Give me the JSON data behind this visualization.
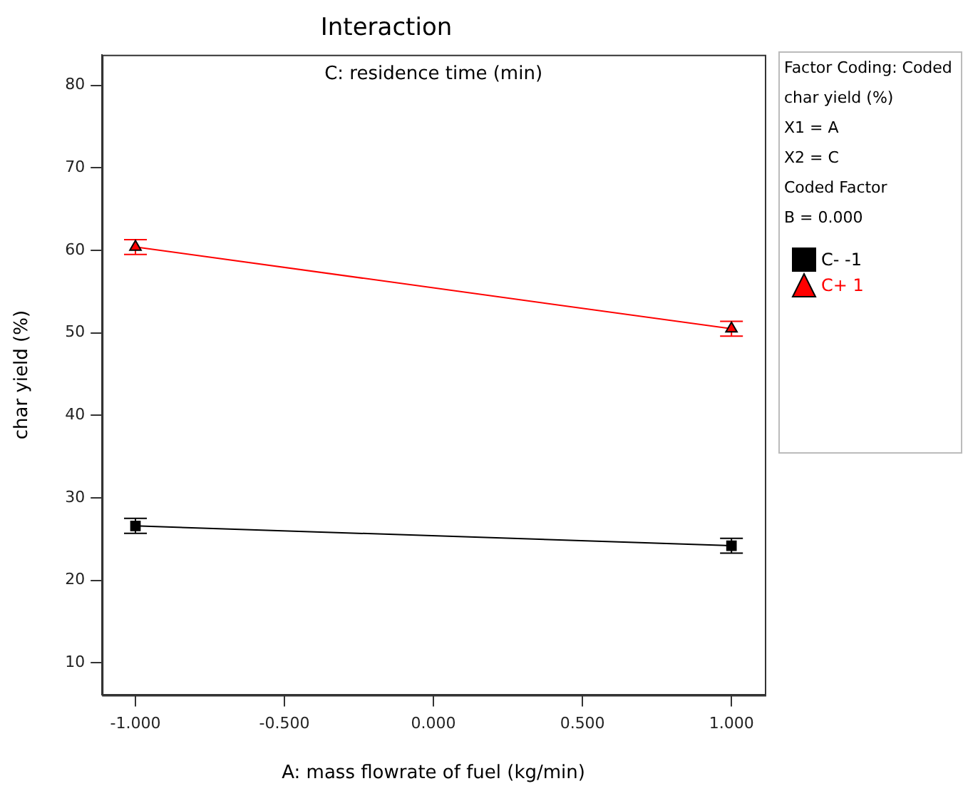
{
  "chart_data": {
    "type": "line",
    "title": "Interaction",
    "subtitle": "C: residence time (min)",
    "xlabel": "A: mass flowrate of fuel (kg/min)",
    "ylabel": "char yield (%)",
    "x": [
      -1,
      1
    ],
    "series": [
      {
        "name": "C- -1",
        "color": "#000000",
        "marker": "square",
        "values": [
          26.6,
          24.2
        ],
        "errors": [
          0.9,
          0.9
        ]
      },
      {
        "name": "C+ 1",
        "color": "#ff0000",
        "marker": "triangle",
        "values": [
          60.4,
          50.5
        ],
        "errors": [
          0.9,
          0.9
        ]
      }
    ],
    "xlim": [
      -1.112,
      1.112
    ],
    "xticks": [
      {
        "value": -1,
        "label": "-1.000"
      },
      {
        "value": -0.5,
        "label": "-0.500"
      },
      {
        "value": 0,
        "label": "0.000"
      },
      {
        "value": 0.5,
        "label": "0.500"
      },
      {
        "value": 1,
        "label": "1.000"
      }
    ],
    "ylim": [
      6.1,
      83.7
    ],
    "yticks": [
      10,
      20,
      30,
      40,
      50,
      60,
      70,
      80
    ],
    "grid": false,
    "legend": "right",
    "line_style": "solid",
    "annotations": [
      "Factor Coding: Coded",
      "char yield (%)",
      "X1 = A",
      "X2 = C",
      "Coded Factor",
      "B = 0.000"
    ]
  }
}
